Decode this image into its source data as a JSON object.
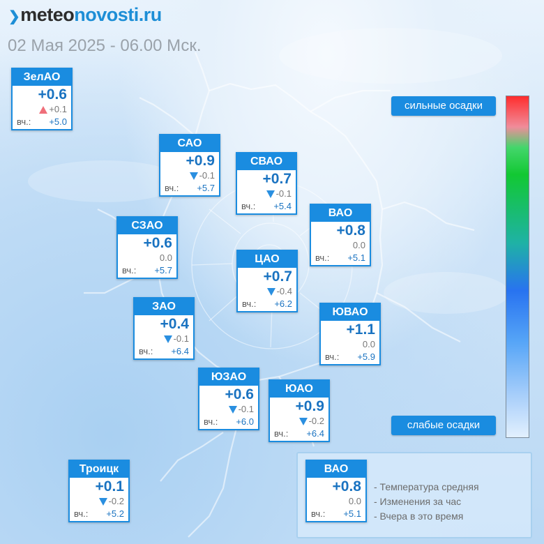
{
  "header": {
    "logo_part1": "meteo",
    "logo_part2": "novosti.ru",
    "date": "02 Мая 2025 - 06.00 Мск."
  },
  "labels": {
    "yesterday": "вч.:"
  },
  "districts": [
    {
      "name": "ЗелАО",
      "temp": "+0.6",
      "change": "+0.1",
      "trend": "up",
      "yesterday": "+5.0"
    },
    {
      "name": "САО",
      "temp": "+0.9",
      "change": "-0.1",
      "trend": "down",
      "yesterday": "+5.7"
    },
    {
      "name": "СВАО",
      "temp": "+0.7",
      "change": "-0.1",
      "trend": "down",
      "yesterday": "+5.4"
    },
    {
      "name": "ВАО",
      "temp": "+0.8",
      "change": "0.0",
      "trend": "none",
      "yesterday": "+5.1"
    },
    {
      "name": "СЗАО",
      "temp": "+0.6",
      "change": "0.0",
      "trend": "none",
      "yesterday": "+5.7"
    },
    {
      "name": "ЦАО",
      "temp": "+0.7",
      "change": "-0.4",
      "trend": "down",
      "yesterday": "+6.2"
    },
    {
      "name": "ЗАО",
      "temp": "+0.4",
      "change": "-0.1",
      "trend": "down",
      "yesterday": "+6.4"
    },
    {
      "name": "ЮВАО",
      "temp": "+1.1",
      "change": "0.0",
      "trend": "none",
      "yesterday": "+5.9"
    },
    {
      "name": "ЮЗАО",
      "temp": "+0.6",
      "change": "-0.1",
      "trend": "down",
      "yesterday": "+6.0"
    },
    {
      "name": "ЮАО",
      "temp": "+0.9",
      "change": "-0.2",
      "trend": "down",
      "yesterday": "+6.4"
    },
    {
      "name": "Троицк",
      "temp": "+0.1",
      "change": "-0.2",
      "trend": "down",
      "yesterday": "+5.2"
    }
  ],
  "scale": {
    "top_label": "сильные осадки",
    "bottom_label": "слабые осадки",
    "colors": [
      "#ff2d2d",
      "#44d66b",
      "#2873f0",
      "#e2f0fe"
    ]
  },
  "legend": {
    "sample": {
      "name": "ВАО",
      "temp": "+0.8",
      "change": "0.0",
      "yesterday": "+5.1"
    },
    "lines": [
      "- Температура средняя",
      "- Изменения за час",
      "- Вчера в это время"
    ]
  },
  "colors": {
    "accent": "#1a8ce0",
    "temp_text": "#1a73c1",
    "trend_down": "#2a8fe0",
    "trend_up": "#ef6f7a"
  }
}
